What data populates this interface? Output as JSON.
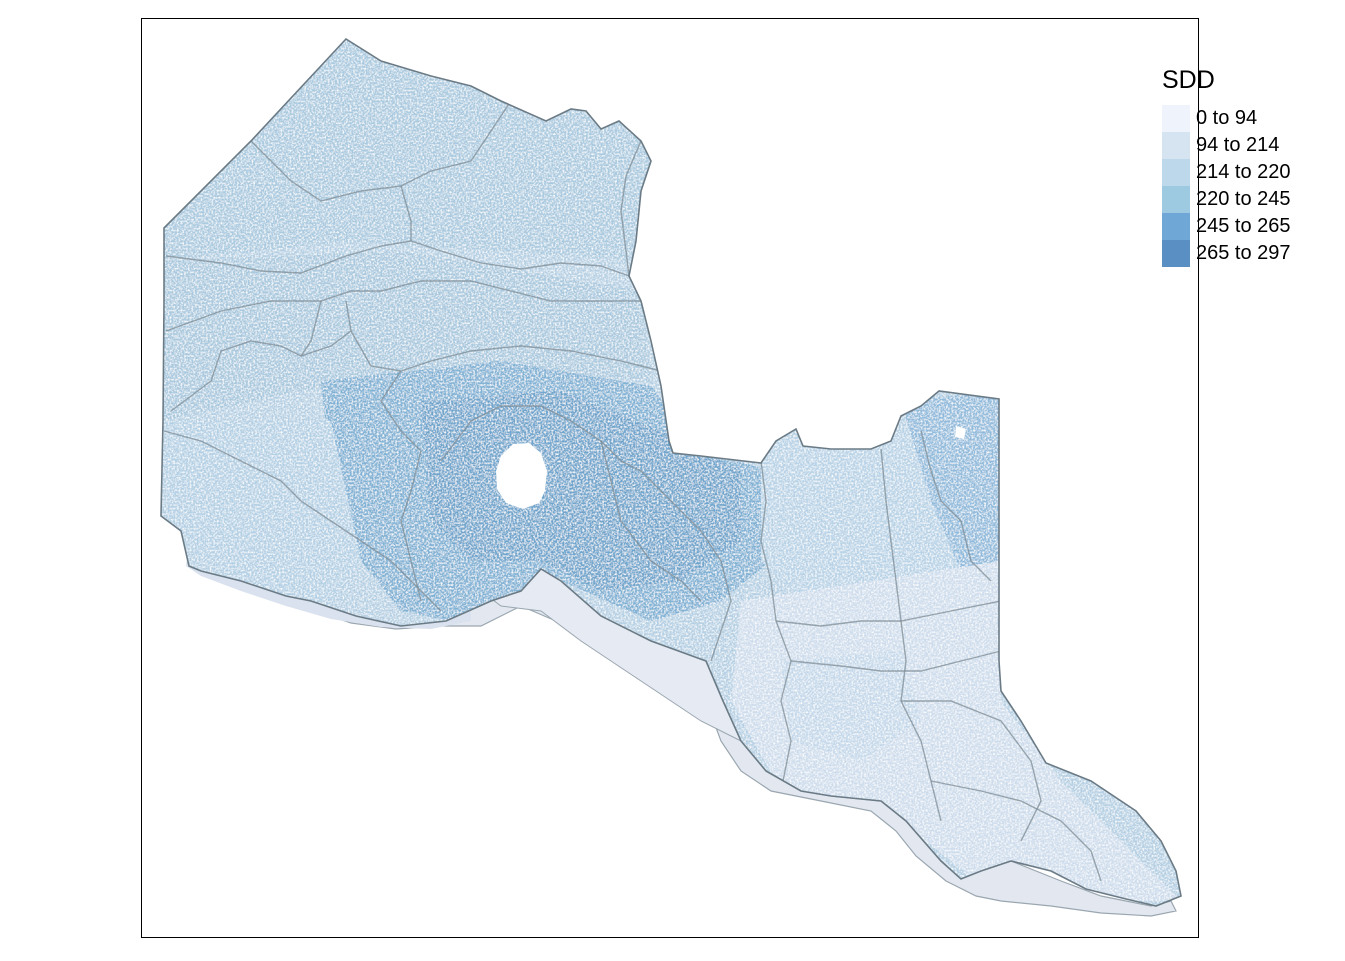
{
  "legend": {
    "title": "SDD",
    "classes": [
      {
        "label": "0 to 94",
        "color": "#eff3fb"
      },
      {
        "label": "94 to 214",
        "color": "#d6e3f1"
      },
      {
        "label": "214 to 220",
        "color": "#bcd8ea"
      },
      {
        "label": "220 to 245",
        "color": "#9ecae1"
      },
      {
        "label": "245 to 265",
        "color": "#6fa8d6"
      },
      {
        "label": "265 to 297",
        "color": "#5a8fc4"
      }
    ]
  },
  "map": {
    "boundary_color": "#6b7b86",
    "district_line_color": "#7d8c96",
    "lake_color": "#ffffff"
  }
}
